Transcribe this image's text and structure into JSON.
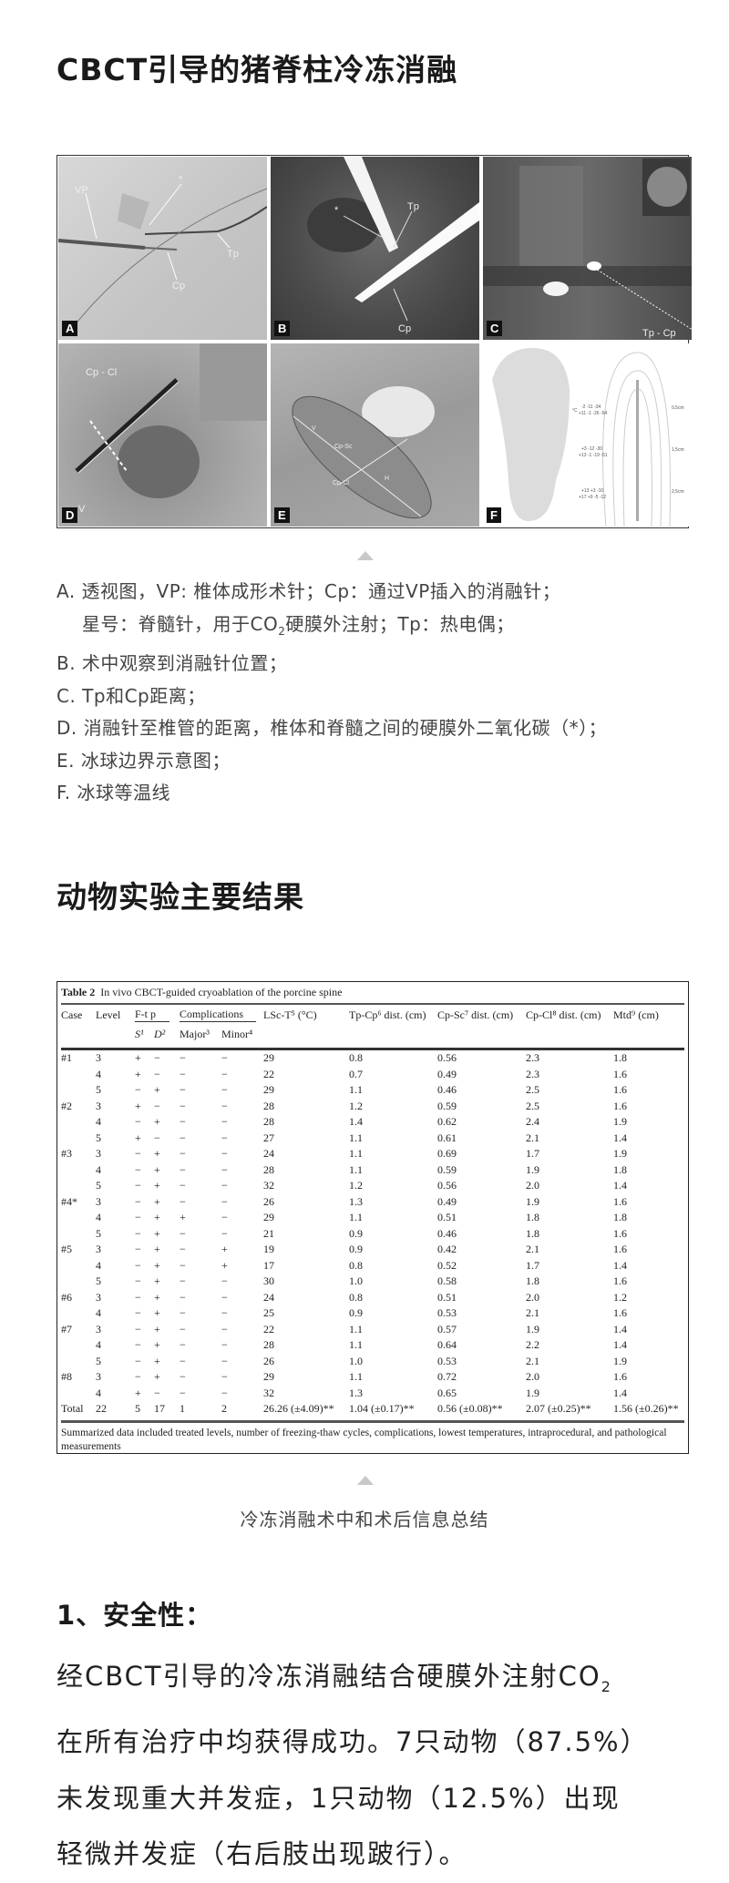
{
  "section1": {
    "title": "CBCT引导的猪脊柱冷冻消融"
  },
  "figure": {
    "panels": [
      {
        "letter": "A",
        "labels": [
          "VP",
          "*",
          "Tp",
          "Cp"
        ]
      },
      {
        "letter": "B",
        "labels": [
          "*",
          "Tp",
          "Cp"
        ]
      },
      {
        "letter": "C",
        "labels": [
          "Tp - Cp"
        ]
      },
      {
        "letter": "D",
        "labels": [
          "Cp - Cl",
          "V"
        ]
      },
      {
        "letter": "E",
        "labels": [
          "Cp-Sc",
          "Cp-Cl",
          "V",
          "H"
        ]
      },
      {
        "letter": "F",
        "labels": [
          "0,5cm",
          "1,5cm",
          "2,5cm",
          "°C"
        ]
      }
    ],
    "isotherms": [
      {
        "top": "-2  -11  -34",
        "bottom": "+11  -1  -26  -54"
      },
      {
        "top": "+3  -12  -30",
        "bottom": "+13  -1  -19  -51"
      },
      {
        "top": "+13  +3  -10",
        "bottom": "+17  +9  -5  -12"
      }
    ]
  },
  "caption": {
    "line_a1": "A. 透视图，VP: 椎体成形术针；Cp：通过VP插入的消融针；",
    "line_a2_pre": "星号：脊髓针，用于CO",
    "line_a2_sub": "2",
    "line_a2_post": "硬膜外注射；Tp：热电偶；",
    "line_b": "B. 术中观察到消融针位置；",
    "line_c": "C. Tp和Cp距离；",
    "line_d": "D. 消融针至椎管的距离，椎体和脊髓之间的硬膜外二氧化碳（*）；",
    "line_e": "E. 冰球边界示意图；",
    "line_f": "F. 冰球等温线"
  },
  "section2": {
    "title": "动物实验主要结果"
  },
  "table": {
    "label": "Table 2",
    "title": "In vivo CBCT-guided cryoablation of the porcine spine",
    "headers": {
      "case": "Case",
      "level": "Level",
      "ftp": "F-t p",
      "complications": "Complications",
      "lsc": "LSc-T⁵ (°C)",
      "tpcp": "Tp-Cp⁶ dist. (cm)",
      "cpsc": "Cp-Sc⁷ dist. (cm)",
      "cpcl": "Cp-Cl⁸ dist. (cm)",
      "mtd": "Mtd⁹ (cm)",
      "s": "S¹",
      "d": "D²",
      "major": "Major³",
      "minor": "Minor⁴"
    },
    "rows": [
      [
        "#1",
        "3",
        "+",
        "−",
        "−",
        "−",
        "29",
        "0.8",
        "0.56",
        "2.3",
        "1.8"
      ],
      [
        "",
        "4",
        "+",
        "−",
        "−",
        "−",
        "22",
        "0.7",
        "0.49",
        "2.3",
        "1.6"
      ],
      [
        "",
        "5",
        "−",
        "+",
        "−",
        "−",
        "29",
        "1.1",
        "0.46",
        "2.5",
        "1.6"
      ],
      [
        "#2",
        "3",
        "+",
        "−",
        "−",
        "−",
        "28",
        "1.2",
        "0.59",
        "2.5",
        "1.6"
      ],
      [
        "",
        "4",
        "−",
        "+",
        "−",
        "−",
        "28",
        "1.4",
        "0.62",
        "2.4",
        "1.9"
      ],
      [
        "",
        "5",
        "+",
        "−",
        "−",
        "−",
        "27",
        "1.1",
        "0.61",
        "2.1",
        "1.4"
      ],
      [
        "#3",
        "3",
        "−",
        "+",
        "−",
        "−",
        "24",
        "1.1",
        "0.69",
        "1.7",
        "1.9"
      ],
      [
        "",
        "4",
        "−",
        "+",
        "−",
        "−",
        "28",
        "1.1",
        "0.59",
        "1.9",
        "1.8"
      ],
      [
        "",
        "5",
        "−",
        "+",
        "−",
        "−",
        "32",
        "1.2",
        "0.56",
        "2.0",
        "1.4"
      ],
      [
        "#4*",
        "3",
        "−",
        "+",
        "−",
        "−",
        "26",
        "1.3",
        "0.49",
        "1.9",
        "1.6"
      ],
      [
        "",
        "4",
        "−",
        "+",
        "+",
        "−",
        "29",
        "1.1",
        "0.51",
        "1.8",
        "1.8"
      ],
      [
        "",
        "5",
        "−",
        "+",
        "−",
        "−",
        "21",
        "0.9",
        "0.46",
        "1.8",
        "1.6"
      ],
      [
        "#5",
        "3",
        "−",
        "+",
        "−",
        "+",
        "19",
        "0.9",
        "0.42",
        "2.1",
        "1.6"
      ],
      [
        "",
        "4",
        "−",
        "+",
        "−",
        "+",
        "17",
        "0.8",
        "0.52",
        "1.7",
        "1.4"
      ],
      [
        "",
        "5",
        "−",
        "+",
        "−",
        "−",
        "30",
        "1.0",
        "0.58",
        "1.8",
        "1.6"
      ],
      [
        "#6",
        "3",
        "−",
        "+",
        "−",
        "−",
        "24",
        "0.8",
        "0.51",
        "2.0",
        "1.2"
      ],
      [
        "",
        "4",
        "−",
        "+",
        "−",
        "−",
        "25",
        "0.9",
        "0.53",
        "2.1",
        "1.6"
      ],
      [
        "#7",
        "3",
        "−",
        "+",
        "−",
        "−",
        "22",
        "1.1",
        "0.57",
        "1.9",
        "1.4"
      ],
      [
        "",
        "4",
        "−",
        "+",
        "−",
        "−",
        "28",
        "1.1",
        "0.64",
        "2.2",
        "1.4"
      ],
      [
        "",
        "5",
        "−",
        "+",
        "−",
        "−",
        "26",
        "1.0",
        "0.53",
        "2.1",
        "1.9"
      ],
      [
        "#8",
        "3",
        "−",
        "+",
        "−",
        "−",
        "29",
        "1.1",
        "0.72",
        "2.0",
        "1.6"
      ],
      [
        "",
        "4",
        "+",
        "−",
        "−",
        "−",
        "32",
        "1.3",
        "0.65",
        "1.9",
        "1.4"
      ]
    ],
    "total": [
      "Total",
      "22",
      "5",
      "17",
      "1",
      "2",
      "26.26 (±4.09)**",
      "1.04 (±0.17)**",
      "0.56 (±0.08)**",
      "2.07 (±0.25)**",
      "1.56 (±0.26)**"
    ],
    "footnote": "Summarized data included treated levels, number of freezing-thaw cycles, complications, lowest temperatures, intraprocedural, and pathological measurements"
  },
  "table_caption": "冷冻消融术中和术后信息总结",
  "section3": {
    "heading": "1、安全性：",
    "line1_pre": "经CBCT引导的冷冻消融结合硬膜外注射CO",
    "line1_sub": "2",
    "line2": "在所有治疗中均获得成功。7只动物（87.5%）",
    "line3": "未发现重大并发症，1只动物（12.5%）出现",
    "line4": "轻微并发症（右后肢出现跛行）。"
  }
}
